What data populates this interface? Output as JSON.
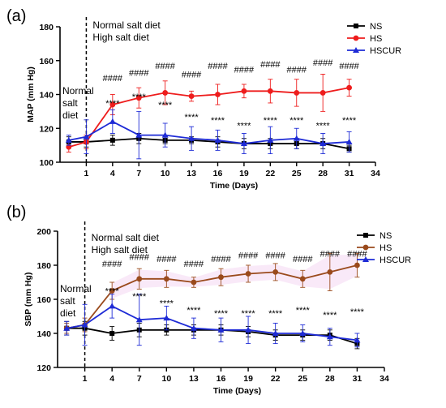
{
  "colors": {
    "NS": "#000000",
    "HS_a": "#ee1c1c",
    "HS_b": "#9a4a1c",
    "HSCUR": "#1e2bd6",
    "shade_b": "#f7dff5"
  },
  "chart_data": [
    {
      "type": "line",
      "panel_label": "(a)",
      "ylabel": "MAP (mm Hg)",
      "xlabel": "Time (Days)",
      "xlim": [
        -2,
        34
      ],
      "ylim": [
        100,
        180
      ],
      "xticks": [
        "1",
        "4",
        "7",
        "10",
        "13",
        "16",
        "19",
        "22",
        "25",
        "28",
        "31",
        "34"
      ],
      "yticks": [
        "100",
        "120",
        "140",
        "160",
        "180"
      ],
      "annotations": {
        "left": [
          "Normal",
          "salt",
          "diet"
        ],
        "right": [
          "Normal salt diet",
          "High salt diet"
        ]
      },
      "x": [
        -1,
        1,
        4,
        7,
        10,
        13,
        16,
        19,
        22,
        25,
        28,
        31
      ],
      "series": [
        {
          "name": "NS",
          "color_key": "NS",
          "marker": "square",
          "values": [
            112,
            112,
            113,
            114,
            113,
            113,
            112,
            111,
            111,
            111,
            111,
            108
          ],
          "errors": [
            3,
            3,
            3,
            3,
            2,
            2,
            3,
            3,
            3,
            3,
            3,
            2
          ]
        },
        {
          "name": "HS",
          "color_key": "HS_a",
          "marker": "circle",
          "values": [
            109,
            112,
            134,
            138,
            141,
            139,
            140,
            142,
            142,
            141,
            141,
            144
          ],
          "errors": [
            3,
            4,
            6,
            6,
            7,
            3,
            6,
            4,
            7,
            8,
            11,
            5
          ]
        },
        {
          "name": "HSCUR",
          "color_key": "HSCUR",
          "marker": "triangle",
          "values": [
            113,
            115,
            124,
            116,
            116,
            114,
            113,
            111,
            113,
            114,
            111,
            112
          ],
          "errors": [
            3,
            10,
            7,
            14,
            7,
            7,
            6,
            6,
            8,
            6,
            6,
            6
          ]
        }
      ],
      "sig_hash": {
        "label": "####",
        "x": [
          4,
          7,
          10,
          13,
          16,
          19,
          22,
          25,
          28,
          31
        ],
        "y": [
          148,
          151,
          155,
          150,
          155,
          153,
          156,
          153,
          157,
          155
        ]
      },
      "sig_star": {
        "label": "****",
        "x": [
          4,
          7,
          10,
          13,
          16,
          19,
          22,
          25,
          28,
          31
        ],
        "y": [
          133,
          137,
          132,
          125,
          123,
          120,
          123,
          123,
          120,
          123
        ]
      },
      "legend": [
        "NS",
        "HS",
        "HSCUR"
      ]
    },
    {
      "type": "line",
      "panel_label": "(b)",
      "ylabel": "SBP (mm Hg)",
      "xlabel": "Time (Days)",
      "xlim": [
        -2,
        34
      ],
      "ylim": [
        120,
        200
      ],
      "xticks": [
        "1",
        "4",
        "7",
        "10",
        "13",
        "16",
        "19",
        "22",
        "25",
        "28",
        "31",
        "34"
      ],
      "yticks": [
        "120",
        "140",
        "160",
        "180",
        "200"
      ],
      "annotations": {
        "left": [
          "Normal",
          "salt",
          "diet"
        ],
        "right": [
          "Normal salt diet",
          "High salt diet"
        ]
      },
      "x": [
        -1,
        1,
        4,
        7,
        10,
        13,
        16,
        19,
        22,
        25,
        28,
        31
      ],
      "series": [
        {
          "name": "NS",
          "color_key": "NS",
          "marker": "square",
          "values": [
            143,
            143,
            140,
            142,
            142,
            142,
            142,
            141,
            139,
            139,
            139,
            134
          ],
          "errors": [
            4,
            4,
            4,
            4,
            3,
            3,
            3,
            3,
            3,
            3,
            3,
            3
          ]
        },
        {
          "name": "HS",
          "color_key": "HS_b",
          "marker": "circle",
          "values": [
            143,
            145,
            165,
            172,
            172,
            170,
            173,
            175,
            176,
            172,
            176,
            180
          ],
          "errors": [
            3,
            4,
            5,
            6,
            5,
            3,
            5,
            5,
            5,
            5,
            11,
            7
          ]
        },
        {
          "name": "HSCUR",
          "color_key": "HSCUR",
          "marker": "triangle",
          "values": [
            143,
            145,
            156,
            148,
            149,
            143,
            142,
            142,
            140,
            140,
            138,
            136
          ],
          "errors": [
            4,
            12,
            7,
            15,
            7,
            6,
            7,
            8,
            6,
            5,
            5,
            4
          ]
        }
      ],
      "sig_hash": {
        "label": "####",
        "x": [
          4,
          7,
          10,
          13,
          16,
          19,
          22,
          25,
          28,
          31
        ],
        "y": [
          179,
          183,
          182,
          179,
          182,
          184,
          184,
          182,
          185,
          185
        ]
      },
      "sig_star": {
        "label": "****",
        "x": [
          4,
          7,
          10,
          13,
          16,
          19,
          22,
          25,
          28,
          31
        ],
        "y": [
          163,
          160,
          156,
          152,
          150,
          150,
          150,
          152,
          149,
          151
        ]
      },
      "legend": [
        "NS",
        "HS",
        "HSCUR"
      ]
    }
  ]
}
